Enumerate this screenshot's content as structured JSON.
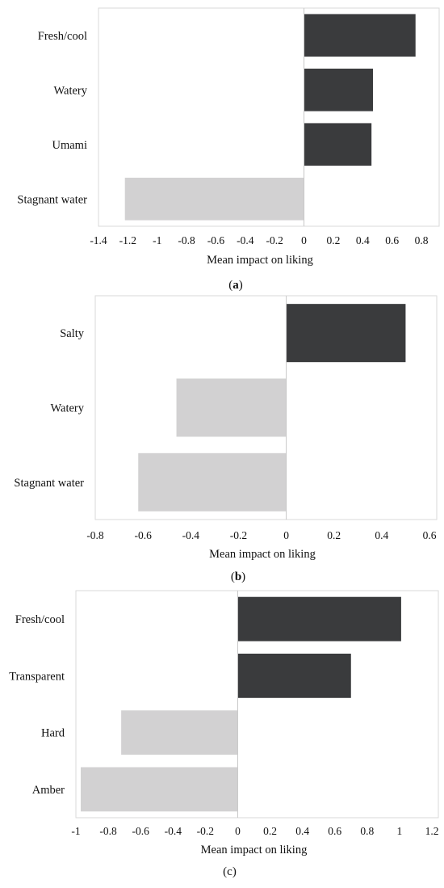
{
  "chart_data": [
    {
      "type": "bar",
      "orientation": "horizontal",
      "caption": "(a)",
      "caption_letter": "a",
      "categories": [
        "Fresh/cool",
        "Watery",
        "Umami",
        "Stagnant water"
      ],
      "values": [
        0.76,
        0.47,
        0.46,
        -1.22
      ],
      "xlabel": "Mean impact on liking",
      "xlim": [
        -1.4,
        0.8
      ],
      "xticks": [
        -1.4,
        -1.2,
        -1,
        -0.8,
        -0.6,
        -0.4,
        -0.2,
        0,
        0.2,
        0.4,
        0.6,
        0.8
      ],
      "xtick_labels": [
        "-1.4",
        "-1.2",
        "-1",
        "-0.8",
        "-0.6",
        "-0.4",
        "-0.2",
        "0",
        "0.2",
        "0.4",
        "0.6",
        "0.8"
      ],
      "grid": false,
      "colors": {
        "positive": "#3a3b3d",
        "negative": "#d2d1d2"
      }
    },
    {
      "type": "bar",
      "orientation": "horizontal",
      "caption": "(b)",
      "caption_letter": "b",
      "categories": [
        "Salty",
        "Watery",
        "Stagnant water"
      ],
      "values": [
        0.5,
        -0.46,
        -0.62
      ],
      "xlabel": "Mean impact on liking",
      "xlim": [
        -0.8,
        0.6
      ],
      "xticks": [
        -0.8,
        -0.6,
        -0.4,
        -0.2,
        0,
        0.2,
        0.4,
        0.6
      ],
      "xtick_labels": [
        "-0.8",
        "-0.6",
        "-0.4",
        "-0.2",
        "0",
        "0.2",
        "0.4",
        "0.6"
      ],
      "grid": false,
      "colors": {
        "positive": "#3a3b3d",
        "negative": "#d2d1d2"
      }
    },
    {
      "type": "bar",
      "orientation": "horizontal",
      "caption": "(c)",
      "categories": [
        "Fresh/cool",
        "Transparent",
        "Hard",
        "Amber"
      ],
      "values": [
        1.01,
        0.7,
        -0.72,
        -0.97
      ],
      "xlabel": "Mean impact on liking",
      "xlim": [
        -1,
        1.2
      ],
      "xticks": [
        -1,
        -0.8,
        -0.6,
        -0.4,
        -0.2,
        0,
        0.2,
        0.4,
        0.6,
        0.8,
        1,
        1.2
      ],
      "xtick_labels": [
        "-1",
        "-0.8",
        "-0.6",
        "-0.4",
        "-0.2",
        "0",
        "0.2",
        "0.4",
        "0.6",
        "0.8",
        "1",
        "1.2"
      ],
      "grid": false,
      "colors": {
        "positive": "#3a3b3d",
        "negative": "#d2d1d2"
      }
    }
  ]
}
